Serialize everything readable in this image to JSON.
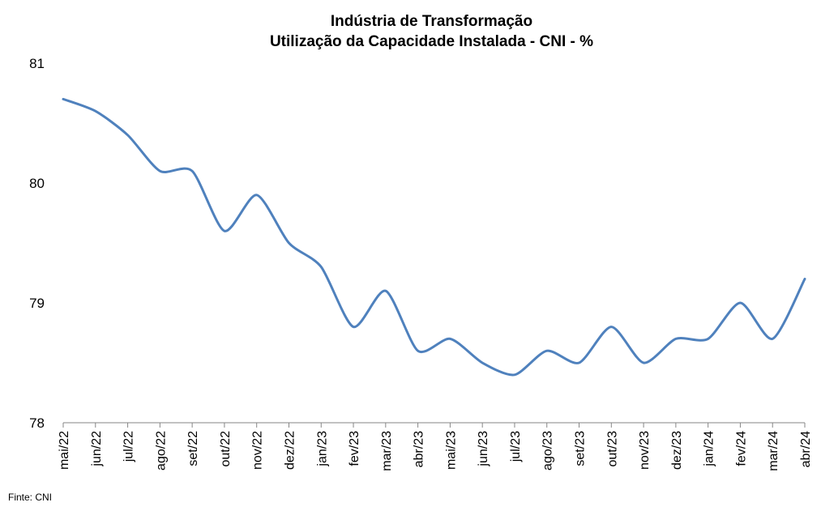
{
  "chart_data": {
    "type": "line",
    "title": "Indústria de Transformação",
    "subtitle": "Utilização da Capacidade Instalada - CNI - %",
    "xlabel": "",
    "ylabel": "",
    "ylim": [
      78,
      81
    ],
    "yticks": [
      "78",
      "79",
      "80",
      "81"
    ],
    "grid": false,
    "categories": [
      "mai/22",
      "jun/22",
      "jul/22",
      "ago/22",
      "set/22",
      "out/22",
      "nov/22",
      "dez/22",
      "jan/23",
      "fev/23",
      "mar/23",
      "abr/23",
      "mai/23",
      "jun/23",
      "jul/23",
      "ago/23",
      "set/23",
      "out/23",
      "nov/23",
      "dez/23",
      "jan/24",
      "fev/24",
      "mar/24",
      "abr/24"
    ],
    "series": [
      {
        "color": "#4F81BD",
        "values": [
          80.7,
          80.6,
          80.4,
          80.1,
          80.1,
          79.6,
          79.9,
          79.5,
          79.3,
          78.8,
          79.1,
          78.6,
          78.7,
          78.5,
          78.4,
          78.6,
          78.5,
          78.8,
          78.5,
          78.7,
          78.7,
          79.0,
          78.7,
          79.2
        ]
      }
    ]
  },
  "source": "Finte: CNI"
}
